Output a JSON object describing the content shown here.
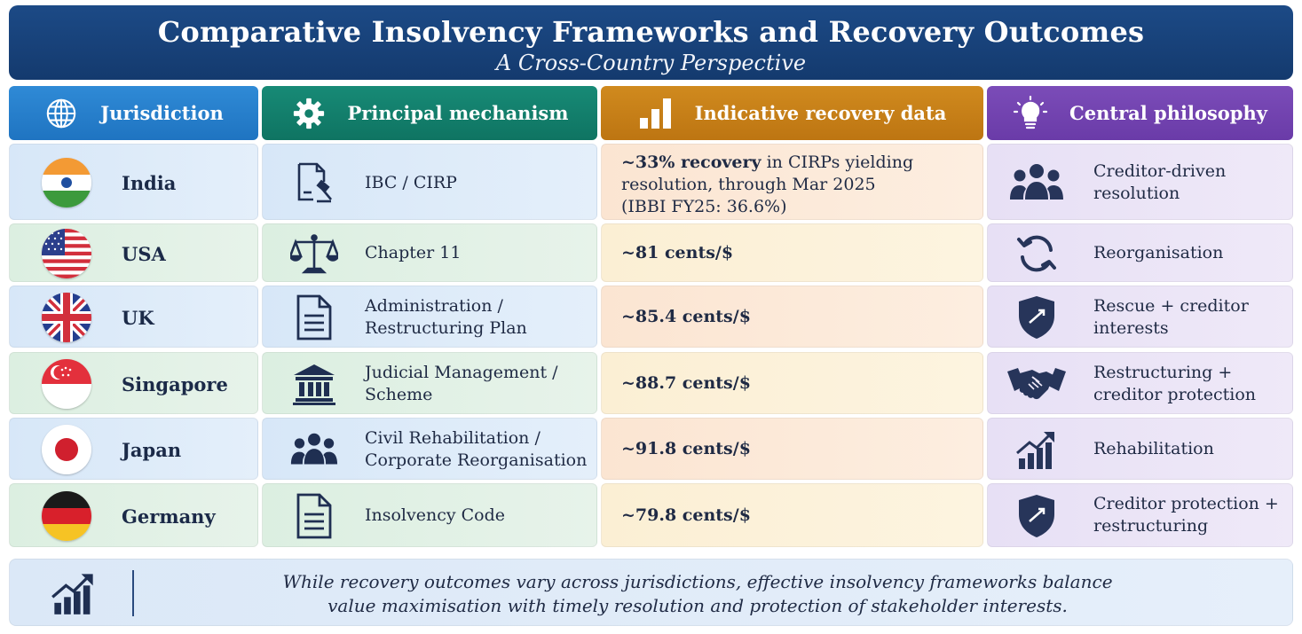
{
  "header": {
    "title": "Comparative Insolvency Frameworks and Recovery Outcomes",
    "subtitle": "A Cross-Country Perspective"
  },
  "columns": [
    {
      "label": "Jurisdiction",
      "icon": "globe-icon",
      "color": "#2581cf"
    },
    {
      "label": "Principal mechanism",
      "icon": "gear-icon",
      "color": "#13806c"
    },
    {
      "label": "Indicative recovery data",
      "icon": "bar-chart-icon",
      "color": "#c88019"
    },
    {
      "label": "Central philosophy",
      "icon": "lightbulb-icon",
      "color": "#7244b0"
    }
  ],
  "rows": [
    {
      "country": "India",
      "mechanism": "IBC / CIRP",
      "mechanism_icon": "document-gavel-icon",
      "recovery_bold": "~33% recovery",
      "recovery_rest": " in CIRPs yielding resolution, through Mar 2025",
      "recovery_note": "(IBBI FY25: 36.6%)",
      "philosophy": "Creditor-driven resolution",
      "philosophy_icon": "people-group-icon"
    },
    {
      "country": "USA",
      "mechanism": "Chapter 11",
      "mechanism_icon": "scales-icon",
      "recovery_bold": "~81 cents/$",
      "philosophy": "Reorganisation",
      "philosophy_icon": "refresh-icon"
    },
    {
      "country": "UK",
      "mechanism": "Administration / Restructuring Plan",
      "mechanism_icon": "document-icon",
      "recovery_bold": "~85.4 cents/$",
      "philosophy": "Rescue + creditor interests",
      "philosophy_icon": "shield-icon"
    },
    {
      "country": "Singapore",
      "mechanism": "Judicial Management / Scheme",
      "mechanism_icon": "courthouse-icon",
      "recovery_bold": "~88.7 cents/$",
      "philosophy": "Restructuring + creditor protection",
      "philosophy_icon": "handshake-icon"
    },
    {
      "country": "Japan",
      "mechanism": "Civil Rehabilitation / Corporate Reorganisation",
      "mechanism_icon": "people-group-icon",
      "recovery_bold": "~91.8 cents/$",
      "philosophy": "Rehabilitation",
      "philosophy_icon": "growth-chart-icon"
    },
    {
      "country": "Germany",
      "mechanism": "Insolvency Code",
      "mechanism_icon": "document-icon",
      "recovery_bold": "~79.8 cents/$",
      "philosophy": "Creditor protection + restructuring",
      "philosophy_icon": "shield-icon"
    }
  ],
  "footer": {
    "line1": "While recovery outcomes vary across jurisdictions, effective insolvency frameworks balance",
    "line2": "value maximisation with timely resolution and protection of stakeholder interests.",
    "icon": "growth-chart-icon"
  }
}
